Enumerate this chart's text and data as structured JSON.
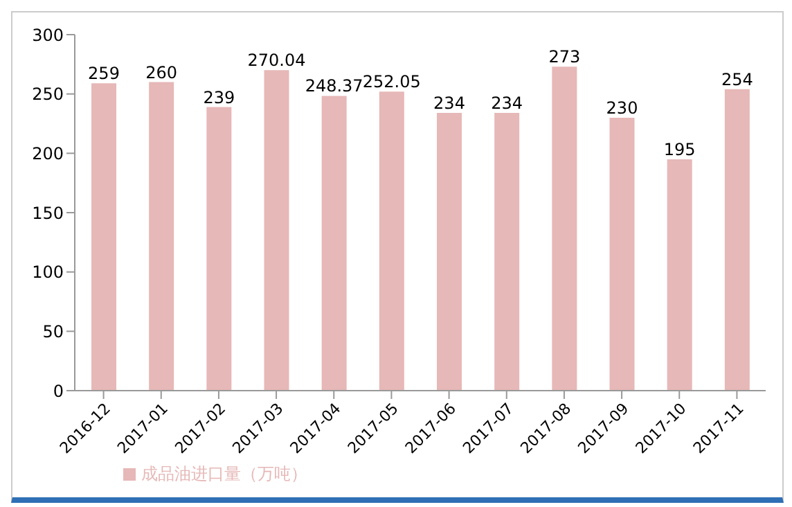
{
  "chart_data": {
    "type": "bar",
    "categories": [
      "2016-12",
      "2017-01",
      "2017-02",
      "2017-03",
      "2017-04",
      "2017-05",
      "2017-06",
      "2017-07",
      "2017-08",
      "2017-09",
      "2017-10",
      "2017-11"
    ],
    "series": [
      {
        "name": "成品油进口量（万吨）",
        "color": "#e6b8b7",
        "values": [
          259,
          260,
          239,
          270.04,
          248.37,
          252.05,
          234,
          234,
          273,
          230,
          195,
          254
        ]
      }
    ],
    "ylim": [
      0,
      300
    ],
    "yticks": [
      0,
      50,
      100,
      150,
      200,
      250,
      300
    ],
    "grid": false,
    "legend": "bottom left",
    "data_labels": true
  }
}
